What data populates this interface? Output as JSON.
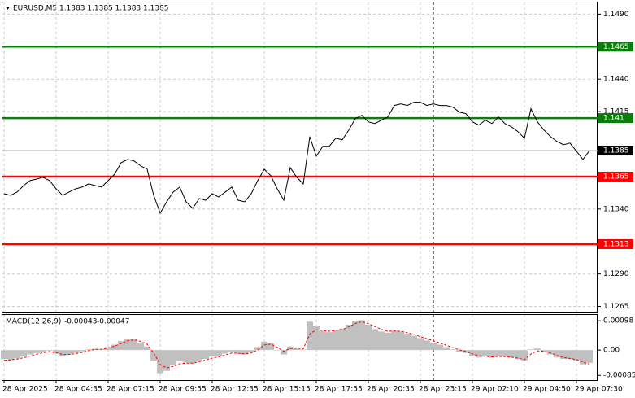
{
  "chart_data": [
    {
      "type": "line",
      "title": "EURUSD,M5  1.1383 1.1385 1.1383 1.1385",
      "categories": [
        "28 Apr 2025",
        null,
        null,
        null,
        null,
        null,
        null,
        null,
        "28 Apr 04:35",
        null,
        null,
        null,
        null,
        null,
        null,
        null,
        "28 Apr 07:15",
        null,
        null,
        null,
        null,
        null,
        null,
        null,
        "28 Apr 09:55",
        null,
        null,
        null,
        null,
        null,
        null,
        null,
        "28 Apr 12:35",
        null,
        null,
        null,
        null,
        null,
        null,
        null,
        "28 Apr 15:15",
        null,
        null,
        null,
        null,
        null,
        null,
        null,
        "28 Apr 17:55",
        null,
        null,
        null,
        null,
        null,
        null,
        null,
        "28 Apr 20:35",
        null,
        null,
        null,
        null,
        null,
        null,
        null,
        "28 Apr 23:15",
        null,
        null,
        null,
        null,
        null,
        null,
        null,
        "29 Apr 02:10",
        null,
        null,
        null,
        null,
        null,
        null,
        null,
        "29 Apr 04:50",
        null,
        null,
        null,
        null,
        null,
        null,
        null,
        "29 Apr 07:30",
        null,
        null
      ],
      "series": [
        {
          "color": "#000000",
          "values": [
            1.13518,
            1.13506,
            1.13531,
            1.13581,
            1.13619,
            1.13631,
            1.13644,
            1.13619,
            1.13556,
            1.13506,
            1.13531,
            1.13556,
            1.13569,
            1.13594,
            1.13581,
            1.13569,
            1.13619,
            1.13669,
            1.13757,
            1.13782,
            1.1377,
            1.13732,
            1.13707,
            1.13506,
            1.13368,
            1.13456,
            1.13531,
            1.13569,
            1.13456,
            1.13405,
            1.13481,
            1.13468,
            1.13518,
            1.13493,
            1.13531,
            1.13569,
            1.13468,
            1.13456,
            1.13518,
            1.13619,
            1.13707,
            1.13657,
            1.13556,
            1.13468,
            1.13719,
            1.13644,
            1.13594,
            1.13958,
            1.13807,
            1.13883,
            1.13883,
            1.13945,
            1.13933,
            1.14008,
            1.14096,
            1.14121,
            1.14071,
            1.14058,
            1.14084,
            1.14109,
            1.14197,
            1.14209,
            1.14197,
            1.14222,
            1.14222,
            1.14197,
            1.14209,
            1.14197,
            1.14197,
            1.14184,
            1.14146,
            1.14134,
            1.14071,
            1.14046,
            1.14084,
            1.14058,
            1.14109,
            1.14058,
            1.14033,
            1.13996,
            1.13945,
            1.14172,
            1.14071,
            1.14008,
            1.13958,
            1.1392,
            1.13895,
            1.13908,
            1.13845,
            1.13782,
            1.1385
          ]
        }
      ],
      "levels": [
        {
          "value": 1.1465,
          "color": "#0a7d0a"
        },
        {
          "value": 1.141,
          "color": "#0a7d0a"
        },
        {
          "value": 1.1365,
          "color": "#ff0000"
        },
        {
          "value": 1.1313,
          "color": "#ff0000"
        }
      ],
      "last_price": 1.1385,
      "ylim": [
        1.1261,
        1.1499
      ],
      "yticks": [
        {
          "value": 1.149,
          "label": "1.1490"
        },
        {
          "value": 1.144,
          "label": "1.1440"
        },
        1.1415,
        {
          "value": 1.134,
          "label": "1.1340"
        },
        {
          "value": 1.129,
          "label": "1.1290"
        },
        1.1265
      ],
      "grid": true
    },
    {
      "type": "macd",
      "title": "MACD(12,26,9)",
      "series": [
        {
          "color": "#c0c0c0",
          "values": [
            -0.0003,
            -0.00032,
            -0.00028,
            -0.00022,
            -0.00015,
            -0.0001,
            -5e-05,
            -2e-05,
            -0.00012,
            -0.0002,
            -0.00015,
            -0.0001,
            -4e-05,
            2e-05,
            4e-05,
            3e-05,
            0.0001,
            0.00018,
            0.0003,
            0.00038,
            0.00036,
            0.00025,
            0.00012,
            -0.00035,
            -0.00078,
            -0.0007,
            -0.0005,
            -0.00038,
            -0.00042,
            -0.00045,
            -0.00035,
            -0.0003,
            -0.00022,
            -0.0002,
            -0.00012,
            -5e-05,
            -0.00012,
            -0.00015,
            -8e-05,
            0.0001,
            0.00028,
            0.00022,
            0,
            -0.00015,
            0.00012,
            8e-05,
            2e-05,
            0.00095,
            0.0008,
            0.00065,
            0.0006,
            0.00068,
            0.00072,
            0.00085,
            0.00098,
            0.001,
            0.00085,
            0.0007,
            0.00062,
            0.00058,
            0.00065,
            0.00062,
            0.00055,
            0.00048,
            0.0004,
            0.00032,
            0.00025,
            0.00018,
            0.0001,
            2e-05,
            -5e-05,
            -0.0001,
            -0.0002,
            -0.00025,
            -0.00022,
            -0.00025,
            -0.0002,
            -0.00022,
            -0.00025,
            -0.0003,
            -0.00035,
            2e-05,
            5e-05,
            -5e-05,
            -0.00015,
            -0.00025,
            -0.0003,
            -0.0003,
            -0.00035,
            -0.00048,
            -0.00043
          ]
        },
        {
          "color": "#ff0000",
          "values": [
            -0.00035,
            -0.00033,
            -0.0003,
            -0.00026,
            -0.0002,
            -0.00014,
            -9e-05,
            -5e-05,
            -9e-05,
            -0.00015,
            -0.00015,
            -0.00012,
            -8e-05,
            -2e-05,
            2e-05,
            3e-05,
            7e-05,
            0.00013,
            0.00022,
            0.00031,
            0.00034,
            0.00029,
            0.0002,
            -0.0001,
            -0.00048,
            -0.0006,
            -0.00055,
            -0.00046,
            -0.00044,
            -0.00044,
            -0.00039,
            -0.00034,
            -0.00027,
            -0.00023,
            -0.00017,
            -0.0001,
            -0.00011,
            -0.00013,
            -0.0001,
            1e-05,
            0.00017,
            0.0002,
            9e-05,
            -4e-05,
            5e-05,
            7e-05,
            4e-05,
            0.00054,
            0.00068,
            0.00066,
            0.00063,
            0.00066,
            0.00069,
            0.00078,
            0.00089,
            0.00095,
            0.00089,
            0.00079,
            0.00069,
            0.00063,
            0.00064,
            0.00063,
            0.00058,
            0.00052,
            0.00045,
            0.00038,
            0.00031,
            0.00024,
            0.00016,
            8e-05,
            1e-05,
            -5e-05,
            -0.00013,
            -0.00019,
            -0.00021,
            -0.00023,
            -0.00021,
            -0.00022,
            -0.00024,
            -0.00027,
            -0.00032,
            -0.00013,
            -3e-05,
            -4e-05,
            -0.0001,
            -0.00018,
            -0.00025,
            -0.00028,
            -0.00032,
            -0.00041,
            -0.00047
          ]
        }
      ],
      "ylim": [
        -0.00098,
        0.00115
      ],
      "yticks": [
        0.00098,
        {
          "value": 0,
          "label": "0.00"
        },
        -0.00085
      ]
    }
  ]
}
